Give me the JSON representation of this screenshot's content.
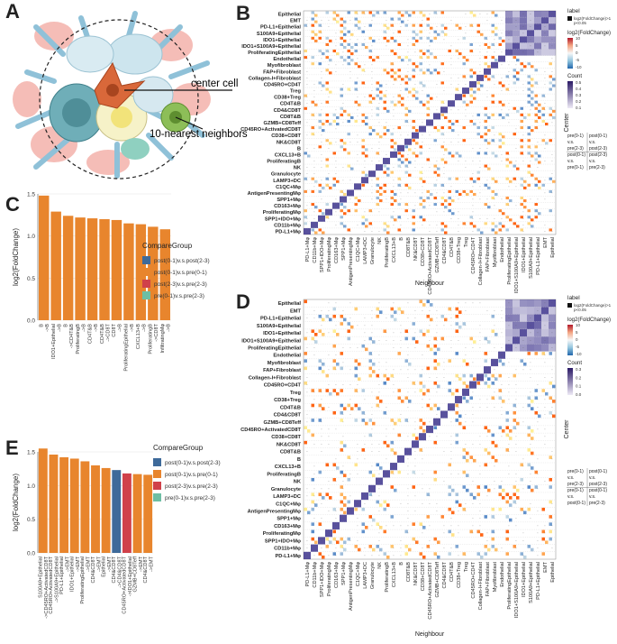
{
  "panels": {
    "A": "A",
    "B": "B",
    "C": "C",
    "D": "D",
    "E": "E"
  },
  "schematic": {
    "center_label": "center cell",
    "neighbors_label": "10-nearest neighbors"
  },
  "chart_data": [
    {
      "id": "C",
      "type": "bar",
      "ylabel": "log2(FoldChange)",
      "ylim": [
        0,
        1.5
      ],
      "yticks": [
        "0.0",
        "0.5",
        "1.0",
        "1.5"
      ],
      "categories": [
        "B\n->B",
        "IDO1+Epithelial\n->B",
        "B\n->CD4T&B",
        "ProliferatingB\n->B",
        "CD4T&B\n->B",
        "CD4T&B\n->CD8T",
        "CD8T\n->B",
        "ProliferatingEpithelial\n->B",
        "CXCL13+B\n->B",
        "ProliferatingB\n->CD8T",
        "InfiltratingMφ\n->B"
      ],
      "values": [
        1.48,
        1.29,
        1.24,
        1.22,
        1.21,
        1.2,
        1.19,
        1.15,
        1.14,
        1.11,
        1.08
      ],
      "series_colors": [
        "#E8852D"
      ],
      "legend": {
        "title": "CompareGroup",
        "items": [
          {
            "label": "post(0-1)v.s.post(2-3)",
            "color": "#3E6A9A"
          },
          {
            "label": "post(0-1)v.s.pre(0-1)",
            "color": "#E8852D"
          },
          {
            "label": "post(2-3)v.s.pre(2-3)",
            "color": "#D0414A"
          },
          {
            "label": "pre(0-1)v.s.pre(2-3)",
            "color": "#6DBEA3"
          }
        ]
      }
    },
    {
      "id": "E",
      "type": "bar",
      "ylabel": "log2(FoldChange)",
      "ylim": [
        0,
        1.5
      ],
      "yticks": [
        "0.0",
        "0.5",
        "1.0",
        "1.5"
      ],
      "categories": [
        "S100A9+Epithelial\n->CD45RO+ActivatedCD8T",
        "CD45RO+ActivatedCD8T\n->S100A9+Epithelial",
        "PD-L1+Epithelial\n->EMT",
        "IDO1+Epithelial\n->EMT",
        "ProliferatingEpithelial\n->EMT",
        "CD4&CD8T\n->EMT",
        "Epithelial\n->EMT",
        "CD4&CD8T\n->CD4&CD8T",
        "CD45RO+ActivatedCD8T\n->IDO1+Epithelial",
        "GZMB+CD8Teff\n->EMT",
        "CD4&CD8T\n->EMT"
      ],
      "values": [
        1.55,
        1.46,
        1.42,
        1.4,
        1.36,
        1.3,
        1.26,
        1.23,
        1.18,
        1.17,
        1.16
      ],
      "colors": [
        "#E8852D",
        "#E8852D",
        "#E8852D",
        "#E8852D",
        "#E8852D",
        "#E8852D",
        "#E8852D",
        "#3E6A9A",
        "#D0414A",
        "#E8852D",
        "#E8852D"
      ],
      "legend": {
        "title": "CompareGroup",
        "items": [
          {
            "label": "post(0-1)v.s.post(2-3)",
            "color": "#3E6A9A"
          },
          {
            "label": "post(0-1)v.s.pre(0-1)",
            "color": "#E8852D"
          },
          {
            "label": "post(2-3)v.s.pre(2-3)",
            "color": "#D0414A"
          },
          {
            "label": "pre(0-1)v.s.pre(2-3)",
            "color": "#6DBEA3"
          }
        ]
      }
    },
    {
      "id": "B",
      "type": "heatmap",
      "xlabel": "Neighbour",
      "ylabel": "Center",
      "rows": [
        "Epithelial",
        "EMT",
        "PD-L1+Epithelial",
        "S100A9+Epithelial",
        "IDO1+Epithelial",
        "IDO1+S100A9+Epithelial",
        "ProliferatingEpithelial",
        "Endothelial",
        "Myofibroblast",
        "FAP+Fibroblast",
        "Collagen-I+Fibroblast",
        "CD45RO+CD4T",
        "Treg",
        "CD38+Treg",
        "CD4T&B",
        "CD4&CD8T",
        "CD8T&B",
        "GZMB+CD8Teff",
        "CD45RO+ActivatedCD8T",
        "CD38+CD8T",
        "NK&CD8T",
        "B",
        "CXCL13+B",
        "ProliferatingB",
        "NK",
        "Granulocyte",
        "LAMP3+DC",
        "C1QC+Mφ",
        "AntigenPresentingMφ",
        "SPP1+Mφ",
        "CD163+Mφ",
        "ProliferatingMφ",
        "SPP1+IDO+Mφ",
        "CD11b+Mφ",
        "PD-L1+Mφ"
      ],
      "cols": [
        "PD-L1+Mφ",
        "CD11b+Mφ",
        "SPP1+IDO+Mφ",
        "ProliferatingMφ",
        "CD163+Mφ",
        "SPP1+Mφ",
        "AntigenPresentingMφ",
        "C1QC+Mφ",
        "LAMP3+DC",
        "Granulocyte",
        "NK",
        "ProliferatingB",
        "CXCL13+B",
        "B",
        "CD8T&B",
        "NK&CD8T",
        "CD38+CD8T",
        "CD45RO+ActivatedCD8T",
        "GZMB+CD8Teff",
        "CD4&CD8T",
        "CD4T&B",
        "CD38+Treg",
        "Treg",
        "CD45RO+CD4T",
        "Collagen-I+Fibroblast",
        "FAP+Fibroblast",
        "Myofibroblast",
        "Endothelial",
        "ProliferatingEpithelial",
        "IDO1+S100A9+Epithelial",
        "IDO1+Epithelial",
        "S100A9+Epithelial",
        "PD-L1+Epithelial",
        "EMT",
        "Epithelial"
      ],
      "legend": {
        "label": "label",
        "label_item": "log2(FoldChange)>1\np<0.05",
        "color_title": "log2(FoldChange)",
        "color_ticks": [
          "10",
          "5",
          "0",
          "-5",
          "-10"
        ],
        "count_title": "Count",
        "count_ticks": [
          "0.5",
          "0.4",
          "0.3",
          "0.2",
          "0.1"
        ]
      },
      "quadrant": [
        [
          "pre(0-1)",
          "post(0-1)"
        ],
        [
          "v.s.",
          "v.s."
        ],
        [
          "pre(2-3)",
          "post(2-3)"
        ],
        [
          "post(0-1)",
          "post(2-3)"
        ],
        [
          "v.s.",
          "v.s."
        ],
        [
          "pre(0-1)",
          "pre(2-3)"
        ]
      ]
    },
    {
      "id": "D",
      "type": "heatmap",
      "xlabel": "Neighbour",
      "ylabel": "Center",
      "rows": [
        "Epithelial",
        "EMT",
        "PD-L1+Epithelial",
        "S100A9+Epithelial",
        "IDO1+Epithelial",
        "IDO1+S100A9+Epithelial",
        "ProliferatingEpithelial",
        "Endothelial",
        "Myofibroblast",
        "FAP+Fibroblast",
        "Collagen-I+Fibroblast",
        "CD45RO+CD4T",
        "Treg",
        "CD38+Treg",
        "CD4T&B",
        "CD4&CD8T",
        "GZMB+CD8Teff",
        "CD45RO+ActivatedCD8T",
        "CD38+CD8T",
        "NK&CD8T",
        "CD8T&B",
        "B",
        "CXCL13+B",
        "ProliferatingB",
        "NK",
        "Granulocyte",
        "LAMP3+DC",
        "C1QC+Mφ",
        "AntigenPresentingMφ",
        "SPP1+Mφ",
        "CD163+Mφ",
        "ProliferatingMφ",
        "SPP1+IDO+Mφ",
        "CD11b+Mφ",
        "PD-L1+Mφ"
      ],
      "cols": [
        "PD-L1+Mφ",
        "CD11b+Mφ",
        "SPP1+IDO+Mφ",
        "ProliferatingMφ",
        "CD163+Mφ",
        "SPP1+Mφ",
        "AntigenPresentingMφ",
        "C1QC+Mφ",
        "LAMP3+DC",
        "Granulocyte",
        "NK",
        "ProliferatingB",
        "CXCL13+B",
        "B",
        "CD8T&B",
        "NK&CD8T",
        "CD38+CD8T",
        "CD45RO+ActivatedCD8T",
        "GZMB+CD8Teff",
        "CD4&CD8T",
        "CD4T&B",
        "CD38+Treg",
        "Treg",
        "CD45RO+CD4T",
        "Collagen-I+Fibroblast",
        "FAP+Fibroblast",
        "Myofibroblast",
        "Endothelial",
        "ProliferatingEpithelial",
        "IDO1+S100A9+Epithelial",
        "IDO1+Epithelial",
        "S100A9+Epithelial",
        "PD-L1+Epithelial",
        "EMT",
        "Epithelial"
      ],
      "legend": {
        "label": "label",
        "label_item": "log2(FoldChange)>1\np<0.05",
        "color_title": "log2(FoldChange)",
        "color_ticks": [
          "10",
          "5",
          "0",
          "-5",
          "-10"
        ],
        "count_title": "Count",
        "count_ticks": [
          "0.3",
          "0.2",
          "0.1",
          "0.0"
        ]
      },
      "quadrant": [
        [
          "pre(0-1)",
          "post(0-1)"
        ],
        [
          "v.s.",
          "v.s."
        ],
        [
          "pre(2-3)",
          "post(2-3)"
        ],
        [
          "pre(0-1)",
          "post(0-1)"
        ],
        [
          "v.s.",
          "v.s."
        ],
        [
          "post(0-1)",
          "pre(2-3)"
        ]
      ]
    }
  ]
}
